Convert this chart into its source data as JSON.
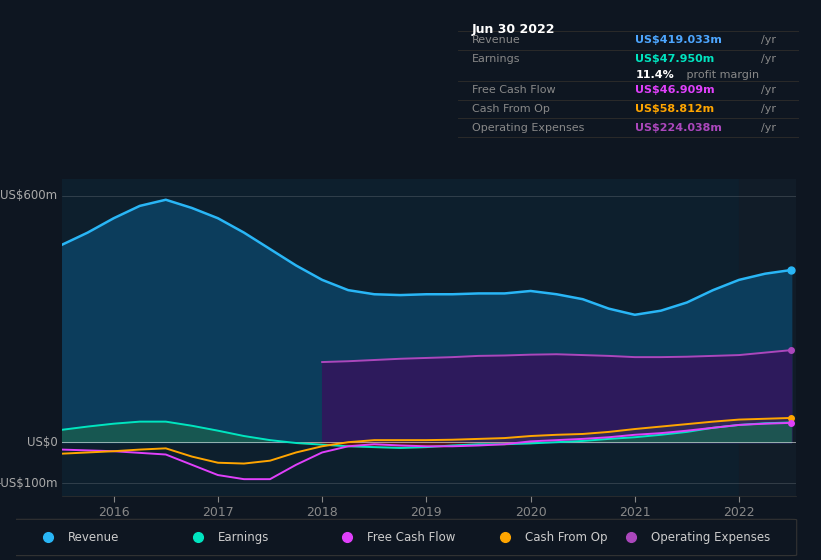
{
  "background_color": "#0e1621",
  "plot_bg_color": "#0d1f2d",
  "title_box": {
    "date": "Jun 30 2022",
    "rows": [
      {
        "label": "Revenue",
        "value": "US$419.033m",
        "value_color": "#4da6ff"
      },
      {
        "label": "Earnings",
        "value": "US$47.950m",
        "value_color": "#00e5c0"
      },
      {
        "label": "",
        "value": "11.4% profit margin",
        "value_color": "#ffffff"
      },
      {
        "label": "Free Cash Flow",
        "value": "US$46.909m",
        "value_color": "#e040fb"
      },
      {
        "label": "Cash From Op",
        "value": "US$58.812m",
        "value_color": "#ffa500"
      },
      {
        "label": "Operating Expenses",
        "value": "US$224.038m",
        "value_color": "#ab47bc"
      }
    ]
  },
  "x_years": [
    2015.5,
    2015.75,
    2016.0,
    2016.25,
    2016.5,
    2016.75,
    2017.0,
    2017.25,
    2017.5,
    2017.75,
    2018.0,
    2018.25,
    2018.5,
    2018.75,
    2019.0,
    2019.25,
    2019.5,
    2019.75,
    2020.0,
    2020.25,
    2020.5,
    2020.75,
    2021.0,
    2021.25,
    2021.5,
    2021.75,
    2022.0,
    2022.25,
    2022.5
  ],
  "revenue": [
    480,
    510,
    545,
    575,
    590,
    570,
    545,
    510,
    470,
    430,
    395,
    370,
    360,
    358,
    360,
    360,
    362,
    362,
    368,
    360,
    348,
    325,
    310,
    320,
    340,
    370,
    395,
    410,
    419
  ],
  "earnings": [
    30,
    38,
    45,
    50,
    50,
    40,
    28,
    15,
    5,
    -2,
    -6,
    -10,
    -12,
    -14,
    -12,
    -8,
    -5,
    -5,
    -3,
    0,
    3,
    8,
    12,
    18,
    25,
    35,
    42,
    46,
    48
  ],
  "free_cash_flow": [
    -18,
    -20,
    -22,
    -26,
    -30,
    -55,
    -80,
    -90,
    -90,
    -55,
    -25,
    -10,
    -5,
    -8,
    -10,
    -10,
    -8,
    -5,
    2,
    5,
    8,
    12,
    18,
    22,
    28,
    35,
    42,
    45,
    47
  ],
  "cash_from_op": [
    -28,
    -25,
    -22,
    -18,
    -15,
    -35,
    -50,
    -52,
    -45,
    -25,
    -10,
    0,
    5,
    5,
    5,
    6,
    8,
    10,
    15,
    18,
    20,
    25,
    32,
    38,
    44,
    50,
    55,
    57,
    59
  ],
  "operating_expenses": [
    0,
    0,
    0,
    0,
    0,
    0,
    0,
    0,
    0,
    0,
    195,
    197,
    200,
    203,
    205,
    207,
    210,
    211,
    213,
    214,
    212,
    210,
    207,
    207,
    208,
    210,
    212,
    218,
    224
  ],
  "ylim": [
    -130,
    640
  ],
  "ytick_labels": [
    "-US$100m",
    "US$0",
    "US$600m"
  ],
  "ytick_values": [
    -100,
    0,
    600
  ],
  "xticks": [
    2016,
    2017,
    2018,
    2019,
    2020,
    2021,
    2022
  ],
  "highlight_start": 2022.0,
  "revenue_color": "#29b6f6",
  "revenue_fill": "#0c3d5c",
  "earnings_color": "#00e5c0",
  "earnings_fill_pos": "#1a5c50",
  "earnings_fill_neg": "#5c1a1a",
  "free_cash_flow_color": "#e040fb",
  "cash_from_op_color": "#ffa500",
  "operating_expenses_color": "#ab47bc",
  "operating_expenses_fill": "#2d1a5c",
  "cfo_fill": "#3a3a55",
  "legend_items": [
    {
      "label": "Revenue",
      "color": "#29b6f6"
    },
    {
      "label": "Earnings",
      "color": "#00e5c0"
    },
    {
      "label": "Free Cash Flow",
      "color": "#e040fb"
    },
    {
      "label": "Cash From Op",
      "color": "#ffa500"
    },
    {
      "label": "Operating Expenses",
      "color": "#ab47bc"
    }
  ]
}
